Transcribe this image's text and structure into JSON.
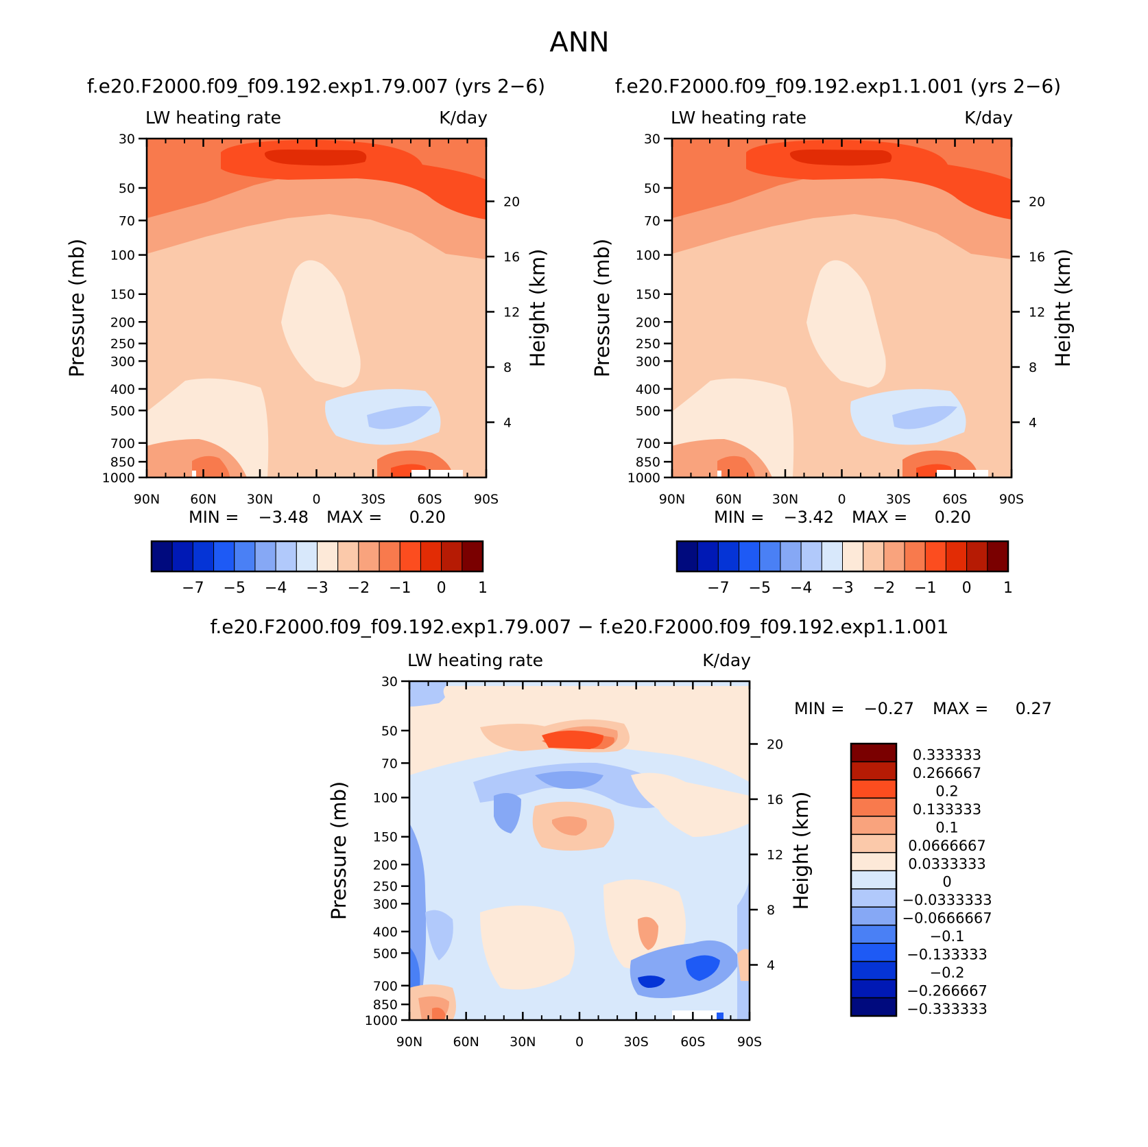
{
  "figure": {
    "title": "ANN"
  },
  "panels": [
    {
      "id": "p1",
      "title": "f.e20.F2000.f09_f09.192.exp1.79.007 (yrs 2−6)",
      "field": "LW heating rate",
      "units": "K/day",
      "ylabel": "Pressure (mb)",
      "ylabel_right": "Height (km)",
      "min_label": "MIN =",
      "min_value": "−3.48",
      "max_label": "MAX =",
      "max_value": "0.20"
    },
    {
      "id": "p2",
      "title": "f.e20.F2000.f09_f09.192.exp1.1.001 (yrs 2−6)",
      "field": "LW heating rate",
      "units": "K/day",
      "ylabel": "Pressure (mb)",
      "ylabel_right": "Height (km)",
      "min_label": "MIN =",
      "min_value": "−3.42",
      "max_label": "MAX =",
      "max_value": "0.20"
    },
    {
      "id": "p3",
      "title": "f.e20.F2000.f09_f09.192.exp1.79.007 − f.e20.F2000.f09_f09.192.exp1.1.001",
      "field": "LW heating rate",
      "units": "K/day",
      "ylabel": "Pressure (mb)",
      "ylabel_right": "Height (km)",
      "min_label": "MIN =",
      "min_value": "−0.27",
      "max_label": "MAX =",
      "max_value": "0.27"
    }
  ],
  "chart_data": {
    "type": "heatmap",
    "x_ticks": [
      "90N",
      "60N",
      "30N",
      "0",
      "30S",
      "60S",
      "90S"
    ],
    "x_range": [
      90,
      -90
    ],
    "y_ticks": [
      "30",
      "50",
      "70",
      "100",
      "150",
      "200",
      "250",
      "300",
      "400",
      "500",
      "700",
      "850",
      "1000"
    ],
    "y_tick_values": [
      30,
      50,
      70,
      100,
      150,
      200,
      250,
      300,
      400,
      500,
      700,
      850,
      1000
    ],
    "y_range_mb": [
      30,
      1000
    ],
    "y_right_ticks": [
      "20",
      "16",
      "12",
      "8",
      "4"
    ],
    "y_right_tick_values": [
      20,
      16,
      12,
      8,
      4
    ],
    "colorbar_main": {
      "colors": [
        "#000a7e",
        "#0019b5",
        "#0534d6",
        "#1e5af5",
        "#4a80f5",
        "#86a8f5",
        "#b1c9fb",
        "#d8e8fb",
        "#fde9d8",
        "#fbc9aa",
        "#f9a37d",
        "#f87a4d",
        "#fc4d1f",
        "#e22c05",
        "#b61b04",
        "#7a0000"
      ],
      "tick_labels": [
        "−7",
        "−5",
        "−4",
        "−3",
        "−2",
        "−1",
        "0",
        "1"
      ]
    },
    "colorbar_diff": {
      "colors_top_to_bottom": [
        "#7a0000",
        "#b61b04",
        "#fc4d1f",
        "#f87a4d",
        "#f9a37d",
        "#fbc9aa",
        "#fde9d8",
        "#d8e8fb",
        "#b1c9fb",
        "#86a8f5",
        "#4a80f5",
        "#1e5af5",
        "#0534d6",
        "#0019b5",
        "#000a7e"
      ],
      "levels": [
        "0.333333",
        "0.266667",
        "0.2",
        "0.133333",
        "0.1",
        "0.0666667",
        "0.0333333",
        "0",
        "−0.0333333",
        "−0.0666667",
        "−0.1",
        "−0.133333",
        "−0.2",
        "−0.266667",
        "−0.333333"
      ]
    }
  }
}
